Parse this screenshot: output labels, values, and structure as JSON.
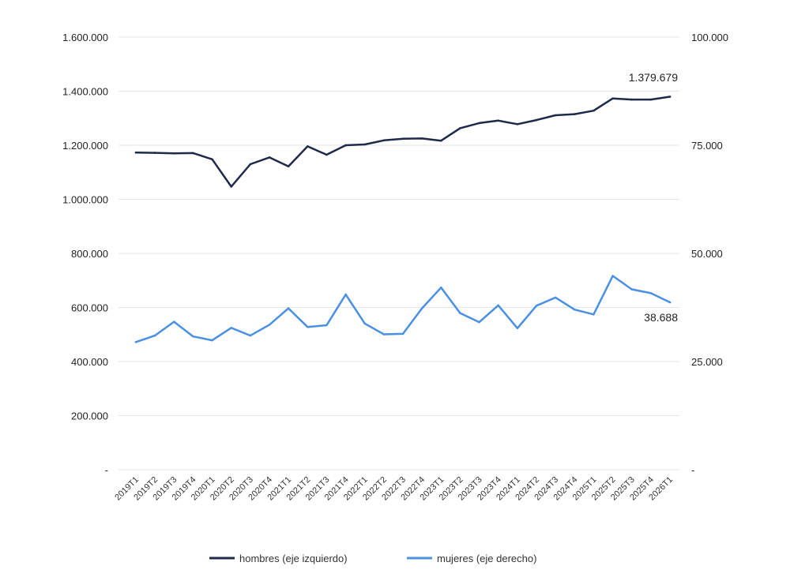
{
  "chart_data": {
    "type": "line",
    "categories": [
      "2019T1",
      "2019T2",
      "2019T3",
      "2019T4",
      "2020T1",
      "2020T2",
      "2020T3",
      "2020T4",
      "2021T1",
      "2021T2",
      "2021T3",
      "2021T4",
      "2022T1",
      "2022T2",
      "2022T3",
      "2022T4",
      "2023T1",
      "2023T2",
      "2023T3",
      "2023T4",
      "2024T1",
      "2024T2",
      "2024T3",
      "2024T4",
      "2025T1",
      "2025T2",
      "2025T3",
      "2025T4",
      "2026T1"
    ],
    "series": [
      {
        "name": "hombres (eje izquierdo)",
        "axis": "left",
        "color": "#1f2a4a",
        "values": [
          1173000,
          1172000,
          1170000,
          1171000,
          1148000,
          1047000,
          1130000,
          1155000,
          1122000,
          1196000,
          1165000,
          1200000,
          1203000,
          1218000,
          1224000,
          1225000,
          1217000,
          1263000,
          1282000,
          1291000,
          1278000,
          1293000,
          1311000,
          1315000,
          1328000,
          1373000,
          1369000,
          1369000,
          1379679
        ]
      },
      {
        "name": "mujeres (eje derecho)",
        "axis": "right",
        "color": "#4a90e2",
        "values": [
          29500,
          31000,
          34200,
          30800,
          29900,
          32800,
          31000,
          33500,
          37300,
          33000,
          33400,
          40500,
          33800,
          31300,
          31400,
          37300,
          42100,
          36200,
          34100,
          38000,
          32700,
          37900,
          39800,
          37000,
          35900,
          44800,
          41700,
          40800,
          38688
        ]
      }
    ],
    "left_axis": {
      "min": 0,
      "max": 1600000,
      "ticks": [
        0,
        200000,
        400000,
        600000,
        800000,
        1000000,
        1200000,
        1400000,
        1600000
      ],
      "tick_labels": [
        "-",
        "200.000",
        "400.000",
        "600.000",
        "800.000",
        "1.000.000",
        "1.200.000",
        "1.400.000",
        "1.600.000"
      ]
    },
    "right_axis": {
      "min": 0,
      "max": 100000,
      "ticks": [
        0,
        25000,
        50000,
        75000,
        100000
      ],
      "tick_labels": [
        "-",
        "25.000",
        "50.000",
        "75.000",
        "100.000"
      ]
    },
    "annotations": {
      "hombres_last": "1.379.679",
      "mujeres_last": "38.688"
    },
    "legend": {
      "position": "bottom",
      "items": [
        {
          "label": "hombres (eje izquierdo)",
          "color": "#1f2a4a"
        },
        {
          "label": "mujeres (eje derecho)",
          "color": "#4a90e2"
        }
      ]
    },
    "grid": true
  }
}
